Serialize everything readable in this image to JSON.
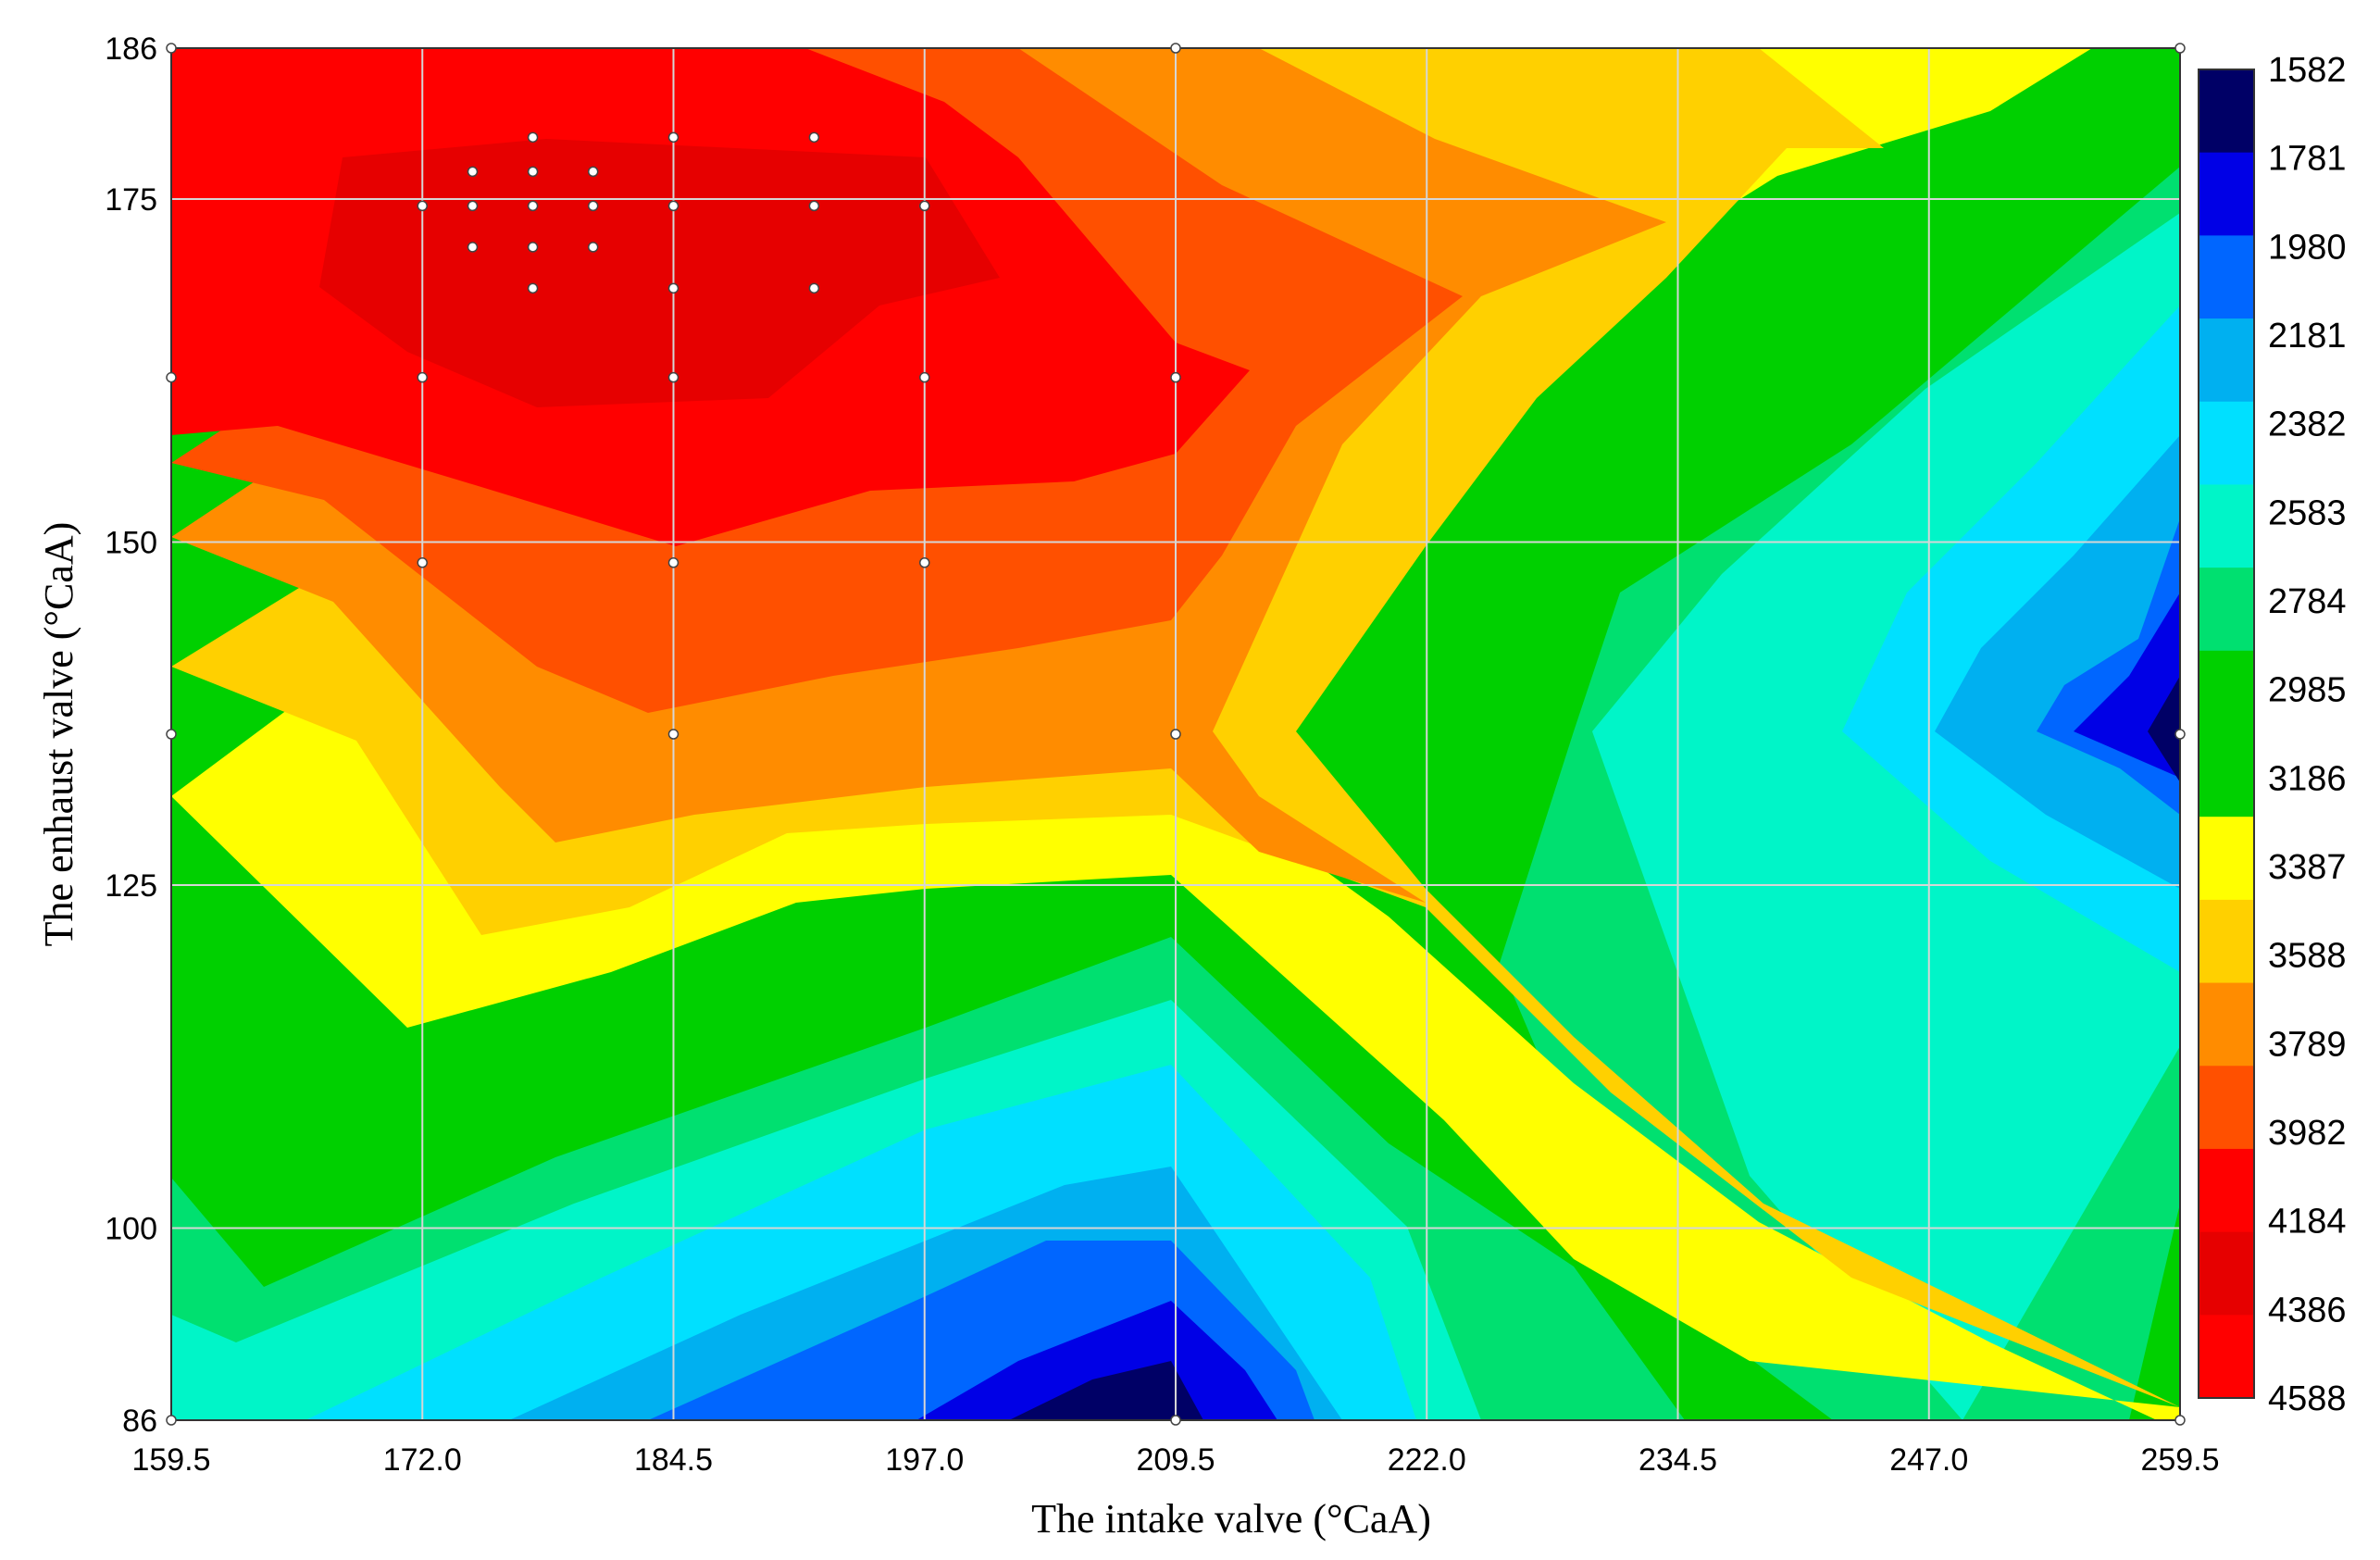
{
  "chart_data": {
    "type": "heatmap",
    "subtype": "filled-contour",
    "title": "",
    "xlabel": "The intake valve (°CaA)",
    "ylabel": "The enhaust valve (°CaA)",
    "xlim": [
      159.5,
      259.5
    ],
    "ylim": [
      86,
      186
    ],
    "x_ticks": [
      "159.5",
      "172.0",
      "184.5",
      "197.0",
      "209.5",
      "222.0",
      "234.5",
      "247.0",
      "259.5"
    ],
    "y_ticks": [
      "86",
      "100",
      "125",
      "150",
      "175",
      "186"
    ],
    "grid": true,
    "colorbar": {
      "position": "right",
      "labels": [
        "1582",
        "1781",
        "1980",
        "2181",
        "2382",
        "2583",
        "2784",
        "2985",
        "3186",
        "3387",
        "3588",
        "3789",
        "3982",
        "4184",
        "4386",
        "4588"
      ],
      "colors": [
        "#000066",
        "#0000e6",
        "#0066ff",
        "#00b0f0",
        "#00e0ff",
        "#00f5c8",
        "#00e070",
        "#00d000",
        "#00d000",
        "#ffff00",
        "#ffd000",
        "#ff8c00",
        "#ff5000",
        "#ff0000",
        "#e60000",
        "#ff0000"
      ]
    },
    "sample_points": [
      [
        159.5,
        186
      ],
      [
        209.5,
        186
      ],
      [
        259.5,
        186
      ],
      [
        177.5,
        179.5
      ],
      [
        184.5,
        179.5
      ],
      [
        191.5,
        179.5
      ],
      [
        174.5,
        177
      ],
      [
        177.5,
        177
      ],
      [
        180.5,
        177
      ],
      [
        172,
        174.5
      ],
      [
        174.5,
        174.5
      ],
      [
        177.5,
        174.5
      ],
      [
        180.5,
        174.5
      ],
      [
        184.5,
        174.5
      ],
      [
        191.5,
        174.5
      ],
      [
        197,
        174.5
      ],
      [
        174.5,
        171.5
      ],
      [
        177.5,
        171.5
      ],
      [
        180.5,
        171.5
      ],
      [
        177.5,
        168.5
      ],
      [
        184.5,
        168.5
      ],
      [
        191.5,
        168.5
      ],
      [
        159.5,
        162
      ],
      [
        172,
        162
      ],
      [
        184.5,
        162
      ],
      [
        197,
        162
      ],
      [
        209.5,
        162
      ],
      [
        172,
        148.5
      ],
      [
        184.5,
        148.5
      ],
      [
        197,
        148.5
      ],
      [
        159.5,
        136
      ],
      [
        184.5,
        136
      ],
      [
        209.5,
        136
      ],
      [
        259.5,
        136
      ],
      [
        159.5,
        86
      ],
      [
        209.5,
        86
      ],
      [
        259.5,
        86
      ]
    ]
  }
}
